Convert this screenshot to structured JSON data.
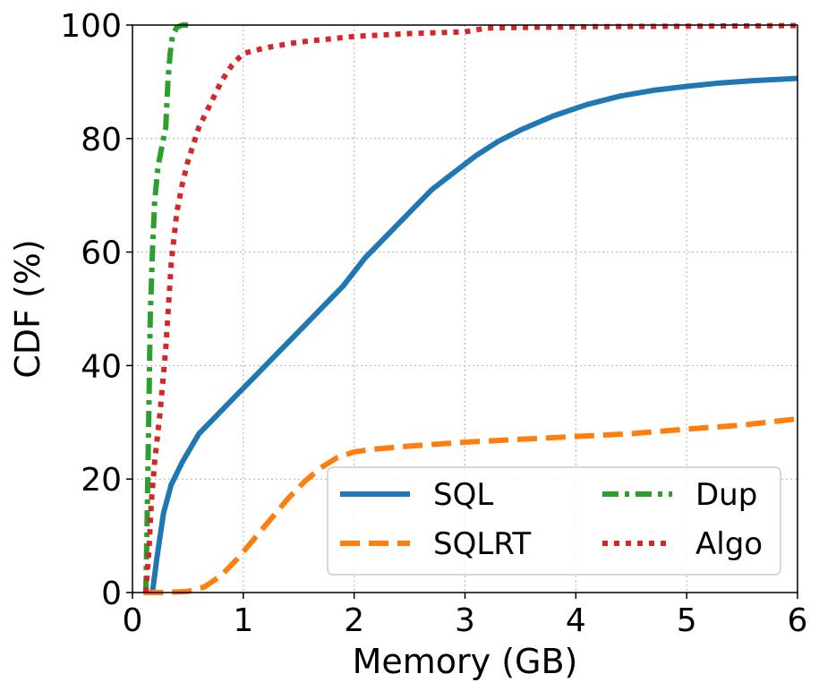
{
  "chart_data": {
    "type": "line",
    "title": "",
    "xlabel": "Memory (GB)",
    "ylabel": "CDF (%)",
    "xlim": [
      0,
      6
    ],
    "ylim": [
      0,
      100
    ],
    "xticks": [
      "0",
      "1",
      "2",
      "3",
      "4",
      "5",
      "6"
    ],
    "yticks": [
      "0",
      "20",
      "40",
      "60",
      "80",
      "100"
    ],
    "grid": true,
    "legend_position": "bottom-right",
    "legend_columns": 2,
    "series": [
      {
        "name": "SQL",
        "color": "#1f77b4",
        "style": "solid",
        "x": [
          0.18,
          0.22,
          0.28,
          0.35,
          0.45,
          0.6,
          0.75,
          0.9,
          1.1,
          1.3,
          1.5,
          1.7,
          1.9,
          2.1,
          2.3,
          2.5,
          2.7,
          2.9,
          3.1,
          3.3,
          3.5,
          3.8,
          4.1,
          4.4,
          4.7,
          5.0,
          5.3,
          5.6,
          6.0
        ],
        "y": [
          0,
          6,
          14,
          19,
          23,
          28,
          31,
          34,
          38,
          42,
          46,
          50,
          54,
          59,
          63,
          67,
          71,
          74,
          77,
          79.5,
          81.5,
          84,
          86,
          87.5,
          88.5,
          89.2,
          89.8,
          90.2,
          90.6
        ]
      },
      {
        "name": "SQLRT",
        "color": "#ff7f0e",
        "style": "dashed",
        "x": [
          0.1,
          0.3,
          0.5,
          0.65,
          0.8,
          0.95,
          1.1,
          1.25,
          1.4,
          1.55,
          1.7,
          1.85,
          2.0,
          2.2,
          2.5,
          3.0,
          3.5,
          4.0,
          4.5,
          5.0,
          5.5,
          6.0
        ],
        "y": [
          0,
          0,
          0.2,
          1,
          3,
          6,
          9.5,
          13,
          16.5,
          19.5,
          22,
          23.8,
          24.8,
          25.3,
          25.8,
          26.5,
          27,
          27.5,
          28,
          28.8,
          29.5,
          30.6
        ]
      },
      {
        "name": "Dup",
        "color": "#2ca02c",
        "style": "dashdot",
        "x": [
          0.12,
          0.13,
          0.14,
          0.15,
          0.16,
          0.18,
          0.2,
          0.23,
          0.27,
          0.3,
          0.32,
          0.34,
          0.36,
          0.4,
          0.45,
          0.55
        ],
        "y": [
          0,
          10,
          22,
          35,
          48,
          60,
          69,
          75,
          79,
          82,
          90,
          95,
          98,
          99.6,
          100,
          100
        ]
      },
      {
        "name": "Algo",
        "color": "#d62728",
        "style": "dotted",
        "x": [
          0.12,
          0.15,
          0.17,
          0.2,
          0.25,
          0.3,
          0.35,
          0.4,
          0.45,
          0.5,
          0.6,
          0.7,
          0.8,
          0.9,
          1.0,
          1.2,
          1.5,
          2.0,
          2.5,
          3.0,
          3.2,
          4.0,
          5.0,
          6.0
        ],
        "y": [
          0,
          8,
          16,
          23,
          32,
          43,
          58,
          67,
          72,
          76,
          82,
          86,
          90,
          93,
          95,
          96,
          97,
          98,
          98.5,
          98.8,
          99.5,
          99.7,
          99.8,
          99.9
        ]
      }
    ]
  }
}
